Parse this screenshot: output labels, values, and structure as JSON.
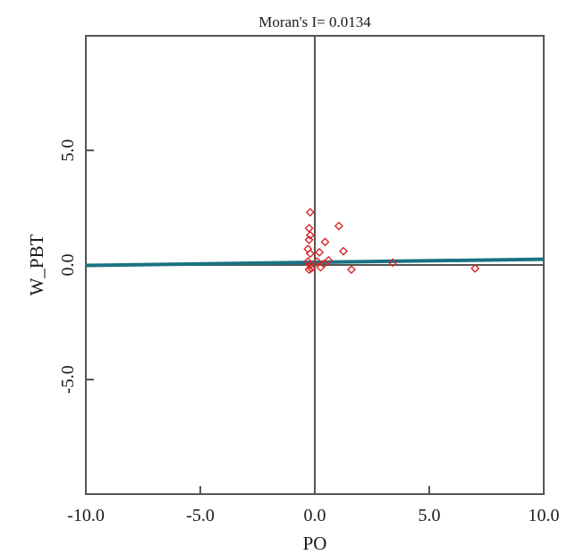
{
  "chart_data": {
    "type": "scatter",
    "title": "Moran's I= 0.0134",
    "xlabel": "PO",
    "ylabel": "W_PBT",
    "xlim": [
      -10,
      10
    ],
    "ylim": [
      -10,
      10
    ],
    "x_ticks": [
      -10,
      -5,
      0,
      5,
      10
    ],
    "x_tick_labels": [
      "-10.0",
      "-5.0",
      "0.0",
      "5.0",
      "10.0"
    ],
    "y_ticks": [
      -5,
      0,
      5
    ],
    "y_tick_labels": [
      "-5.0",
      "0.0",
      "5.0"
    ],
    "grid": false,
    "series": [
      {
        "marker": "diamond",
        "color": "#d62728",
        "points": [
          {
            "x": -0.2,
            "y": 2.3
          },
          {
            "x": -0.25,
            "y": 1.6
          },
          {
            "x": -0.2,
            "y": 1.3
          },
          {
            "x": -0.25,
            "y": 1.1
          },
          {
            "x": -0.3,
            "y": 0.7
          },
          {
            "x": -0.2,
            "y": 0.5
          },
          {
            "x": -0.3,
            "y": 0.15
          },
          {
            "x": -0.2,
            "y": 0.0
          },
          {
            "x": -0.15,
            "y": -0.15
          },
          {
            "x": -0.25,
            "y": -0.2
          },
          {
            "x": 0.2,
            "y": 0.55
          },
          {
            "x": 0.1,
            "y": 0.15
          },
          {
            "x": 0.25,
            "y": -0.1
          },
          {
            "x": 0.4,
            "y": 0.05
          },
          {
            "x": 0.6,
            "y": 0.2
          },
          {
            "x": 0.45,
            "y": 1.0
          },
          {
            "x": 1.05,
            "y": 1.7
          },
          {
            "x": 1.25,
            "y": 0.6
          },
          {
            "x": 1.6,
            "y": -0.2
          },
          {
            "x": 3.4,
            "y": 0.1
          },
          {
            "x": 7.0,
            "y": -0.15
          }
        ]
      }
    ],
    "fit_line": {
      "color": "#1a7283",
      "x": [
        -10,
        10
      ],
      "y": [
        -0.02,
        0.25
      ]
    }
  }
}
